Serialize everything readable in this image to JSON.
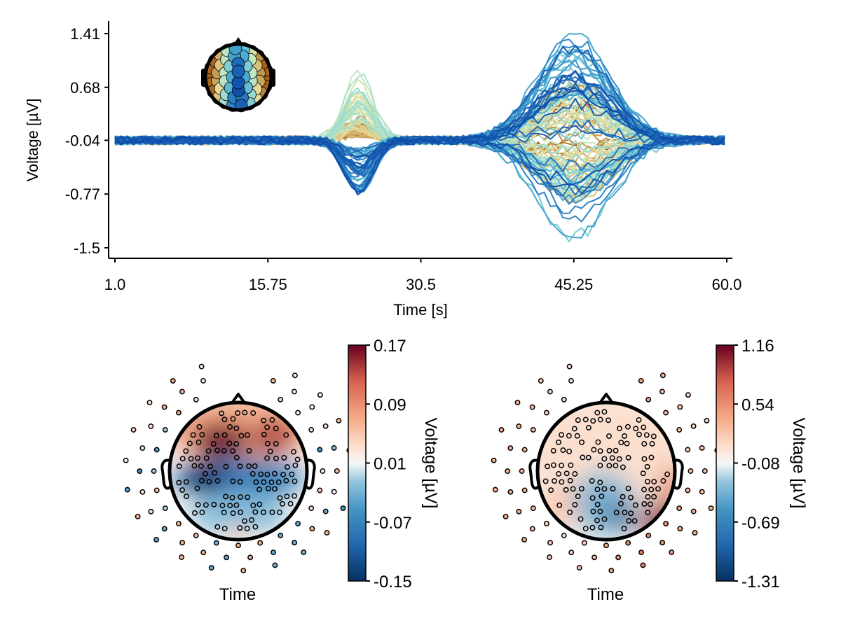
{
  "chart_data": [
    {
      "type": "line",
      "title": "",
      "xlabel": "Time [s]",
      "ylabel": "Voltage [µV]",
      "xlim": [
        1.0,
        60.0
      ],
      "ylim": [
        -1.5,
        1.41
      ],
      "x_ticks": [
        "1.0",
        "15.75",
        "30.5",
        "45.25",
        "60.0"
      ],
      "y_ticks": [
        "1.41",
        "0.68",
        "-0.04",
        "-0.77",
        "-1.5"
      ],
      "n_channels": 110,
      "events": [
        {
          "center_time": 24.5,
          "peak_min": -0.72,
          "peak_max": 0.93
        },
        {
          "center_time": 45.25,
          "peak_min": -1.5,
          "peak_max": 1.41
        }
      ],
      "baseline_noise": 0.06,
      "inset": "electrode position map colour-coded by channel",
      "color_scale": [
        "#a8641c",
        "#c8a35a",
        "#e8d896",
        "#c4e8c0",
        "#8fd8d4",
        "#4aaed4",
        "#2a78c0",
        "#0b4aa8"
      ]
    },
    {
      "type": "heatmap",
      "subtype": "topoplot",
      "xlabel": "Time",
      "colorbar_label": "Voltage [µV]",
      "color_range": [
        -0.15,
        0.17
      ],
      "colorbar_ticks": [
        "0.17",
        "0.09",
        "0.01",
        "-0.07",
        "-0.15"
      ],
      "pattern": "frontal positive, central-parietal negative"
    },
    {
      "type": "heatmap",
      "subtype": "topoplot",
      "xlabel": "Time",
      "colorbar_label": "Voltage [µV]",
      "color_range": [
        -1.31,
        1.16
      ],
      "colorbar_ticks": [
        "1.16",
        "0.54",
        "-0.08",
        "-0.69",
        "-1.31"
      ],
      "pattern": "right posterior positive, central-posterior negative"
    }
  ]
}
